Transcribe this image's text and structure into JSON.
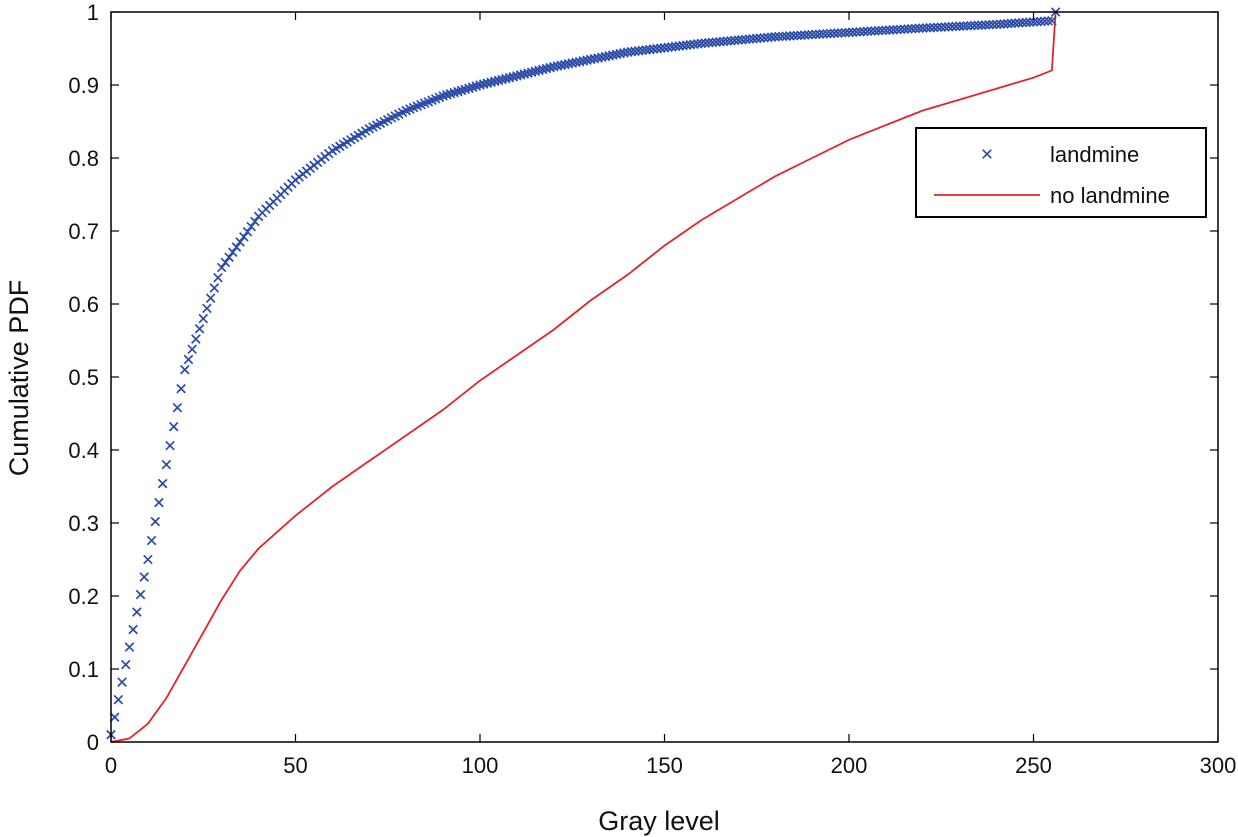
{
  "chart_data": {
    "type": "line",
    "title": "",
    "xlabel": "Gray level",
    "ylabel": "Cumulative PDF",
    "xlim": [
      0,
      300
    ],
    "ylim": [
      0,
      1
    ],
    "grid": false,
    "legend_position": "top-right",
    "xticks": [
      0,
      50,
      100,
      150,
      200,
      250,
      300
    ],
    "xtick_labels": [
      "0",
      "50",
      "100",
      "150",
      "200",
      "250",
      "300"
    ],
    "yticks": [
      0,
      0.1,
      0.2,
      0.3,
      0.4,
      0.5,
      0.6,
      0.7,
      0.8,
      0.9,
      1
    ],
    "ytick_labels": [
      "0",
      "0.1",
      "0.2",
      "0.3",
      "0.4",
      "0.5",
      "0.6",
      "0.7",
      "0.8",
      "0.9",
      "1"
    ],
    "series": [
      {
        "name": "landmine",
        "style": "marker-x",
        "color": "#2B4BA8",
        "x": [
          0,
          10,
          20,
          30,
          40,
          50,
          60,
          70,
          80,
          90,
          100,
          120,
          140,
          160,
          180,
          200,
          220,
          240,
          255,
          256
        ],
        "y": [
          0.01,
          0.25,
          0.51,
          0.65,
          0.72,
          0.77,
          0.81,
          0.84,
          0.865,
          0.885,
          0.9,
          0.925,
          0.945,
          0.957,
          0.966,
          0.972,
          0.978,
          0.983,
          0.988,
          1.0
        ]
      },
      {
        "name": "no landmine",
        "style": "line",
        "color": "#E0242B",
        "x": [
          0,
          5,
          10,
          15,
          20,
          25,
          30,
          35,
          40,
          50,
          60,
          70,
          80,
          90,
          100,
          110,
          120,
          130,
          140,
          150,
          160,
          170,
          180,
          190,
          200,
          210,
          220,
          230,
          240,
          250,
          255,
          256
        ],
        "y": [
          0,
          0.005,
          0.025,
          0.06,
          0.105,
          0.15,
          0.195,
          0.235,
          0.265,
          0.31,
          0.35,
          0.385,
          0.42,
          0.455,
          0.495,
          0.53,
          0.565,
          0.605,
          0.64,
          0.68,
          0.715,
          0.745,
          0.775,
          0.8,
          0.825,
          0.845,
          0.865,
          0.88,
          0.895,
          0.91,
          0.92,
          1.0
        ]
      }
    ]
  }
}
